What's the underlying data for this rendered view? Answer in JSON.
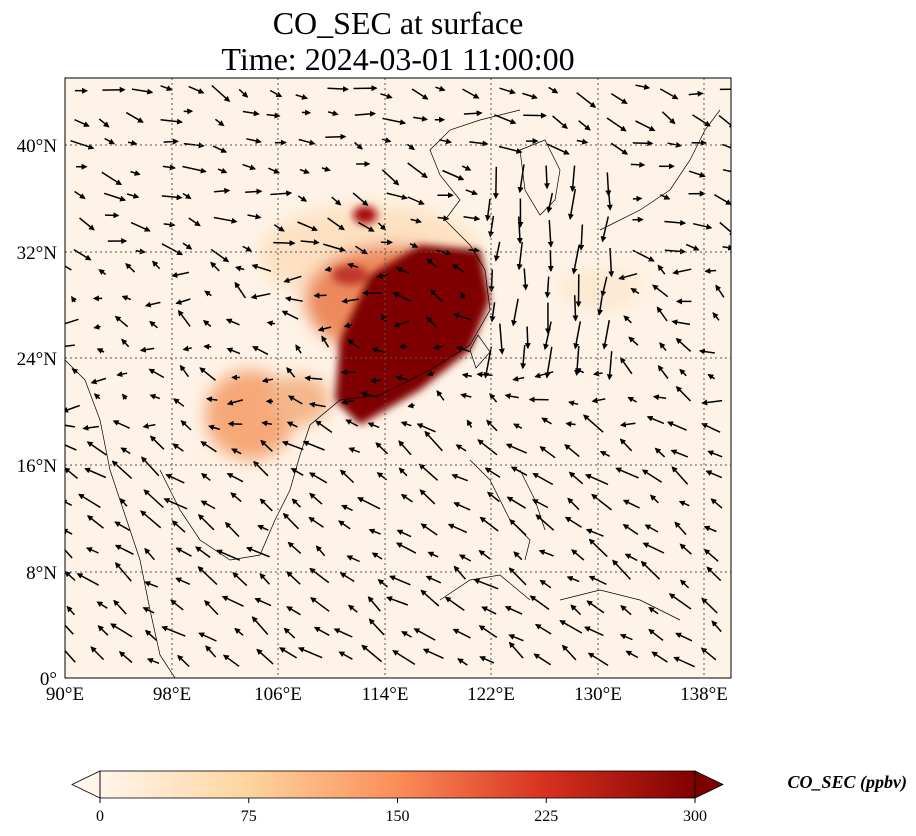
{
  "title_line1": "CO_SEC at surface",
  "title_line2": "Time: 2024-03-01 11:00:00",
  "map": {
    "lon_ticks": [
      "90°E",
      "98°E",
      "106°E",
      "114°E",
      "122°E",
      "130°E",
      "138°E"
    ],
    "lat_ticks": [
      "0°",
      "8°N",
      "16°N",
      "24°N",
      "32°N",
      "40°N"
    ],
    "lon_range": [
      90,
      140
    ],
    "lat_range": [
      0,
      45
    ],
    "gridlines": true
  },
  "colorbar": {
    "label": "CO_SEC (ppbv)",
    "ticks": [
      "0",
      "75",
      "150",
      "225",
      "300"
    ],
    "range": [
      0,
      300
    ],
    "colors": [
      "#fff5eb",
      "#fdd49e",
      "#fc8d59",
      "#d7301f",
      "#7f0000"
    ],
    "extend": "both"
  }
}
